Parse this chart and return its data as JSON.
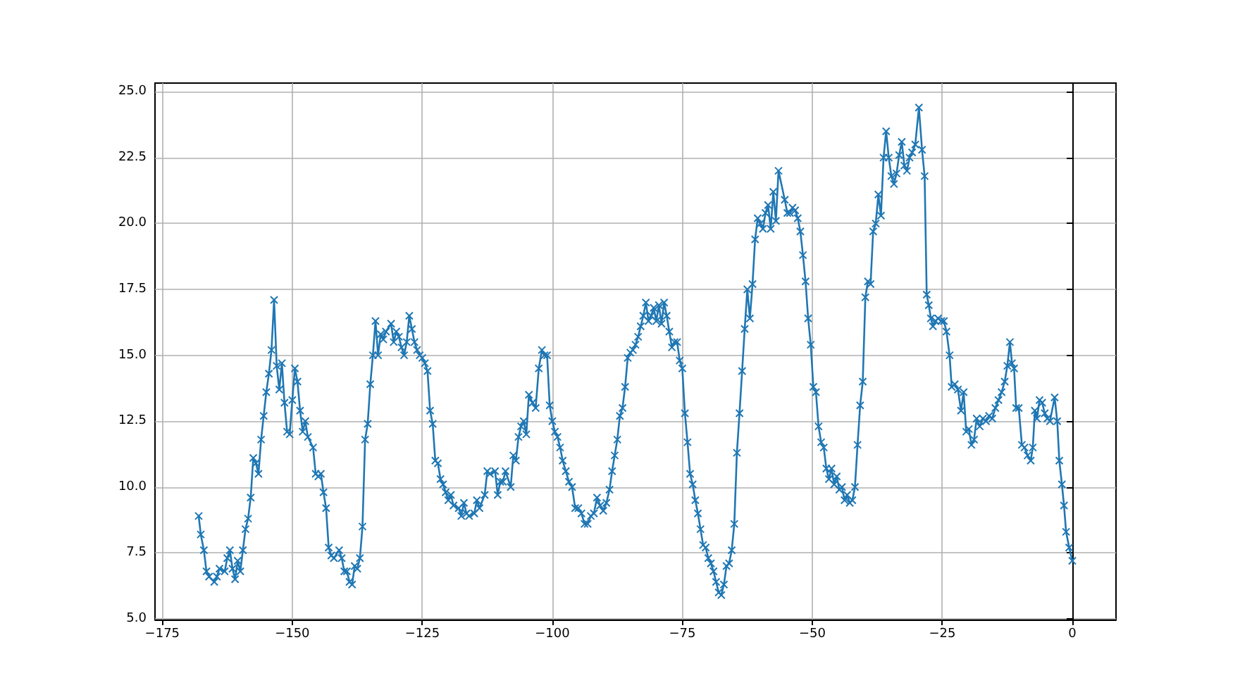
{
  "chart_data": {
    "type": "line",
    "marker": "cross",
    "grid": true,
    "xlim": [
      -176.4,
      8.4
    ],
    "ylim": [
      4.97,
      25.33
    ],
    "xticks": [
      {
        "value": -175,
        "label": "−175"
      },
      {
        "value": -150,
        "label": "−150"
      },
      {
        "value": -125,
        "label": "−125"
      },
      {
        "value": -100,
        "label": "−100"
      },
      {
        "value": -75,
        "label": "−75"
      },
      {
        "value": -50,
        "label": "−50"
      },
      {
        "value": -25,
        "label": "−25"
      },
      0
    ],
    "yticks": [
      {
        "value": 5,
        "label": "5.0"
      },
      7.5,
      {
        "value": 10,
        "label": "10.0"
      },
      12.5,
      {
        "value": 15,
        "label": "15.0"
      },
      17.5,
      {
        "value": 20,
        "label": "20.0"
      },
      22.5,
      {
        "value": 25,
        "label": "25.0"
      }
    ],
    "series": [
      {
        "color": "#1f77b4",
        "x": [
          -168,
          -167.6,
          -167,
          -166.5,
          -166,
          -165,
          -164.5,
          -164,
          -163,
          -162.5,
          -162,
          -161.5,
          -161,
          -160.5,
          -160,
          -159.5,
          -159,
          -158.5,
          -158,
          -157.5,
          -157,
          -156.5,
          -156,
          -155.5,
          -155,
          -154.5,
          -154,
          -153.5,
          -153,
          -152.5,
          -152,
          -151.5,
          -151,
          -150.5,
          -150,
          -149.5,
          -149,
          -148.5,
          -148,
          -147.5,
          -147,
          -146,
          -145.5,
          -145,
          -144.5,
          -144,
          -143.5,
          -143,
          -142.5,
          -142,
          -141,
          -140.5,
          -140,
          -139.5,
          -139,
          -138.5,
          -138,
          -137.5,
          -137,
          -136.5,
          -136,
          -135.5,
          -135,
          -134.5,
          -134,
          -133.5,
          -133,
          -132.5,
          -132,
          -131,
          -130.5,
          -130,
          -129.5,
          -129,
          -128.5,
          -128,
          -127.5,
          -127,
          -126.5,
          -126,
          -125.5,
          -125,
          -124.5,
          -124,
          -123.5,
          -123,
          -122.5,
          -122,
          -121.5,
          -121,
          -120.5,
          -120,
          -119.5,
          -119,
          -118,
          -117.5,
          -117,
          -116.5,
          -116,
          -115,
          -114.5,
          -114,
          -113,
          -112.5,
          -112,
          -111,
          -110.5,
          -110,
          -109.5,
          -109,
          -108,
          -107.5,
          -107,
          -106.5,
          -106,
          -105.5,
          -105,
          -104.5,
          -103.8,
          -103.2,
          -102.6,
          -102,
          -101.5,
          -101,
          -100.5,
          -100,
          -99.5,
          -99,
          -98.5,
          -98,
          -97.4,
          -96.8,
          -96.2,
          -95.6,
          -95,
          -94.4,
          -93.8,
          -93.2,
          -92.6,
          -92,
          -91.4,
          -90.8,
          -90.2,
          -89.6,
          -89,
          -88.5,
          -88,
          -87.5,
          -87,
          -86.5,
          -86,
          -85.5,
          -85,
          -84.5,
          -84,
          -83.5,
          -83,
          -82.5,
          -82,
          -81.5,
          -81,
          -80.5,
          -80,
          -79.5,
          -79,
          -78.5,
          -78,
          -77.5,
          -77,
          -76.5,
          -76,
          -75.5,
          -75,
          -74.5,
          -74,
          -73.5,
          -73,
          -72.5,
          -72,
          -71.5,
          -71,
          -70.5,
          -70,
          -69.5,
          -69,
          -68.5,
          -68,
          -67.5,
          -67,
          -66.5,
          -66,
          -65.5,
          -65,
          -64.5,
          -64,
          -63.5,
          -63,
          -62.5,
          -62,
          -61.5,
          -61,
          -60.5,
          -60,
          -59.5,
          -59,
          -58.5,
          -58,
          -57.5,
          -57,
          -56.5,
          -55.3,
          -54.8,
          -54.3,
          -53.8,
          -53.3,
          -52.8,
          -52.3,
          -51.8,
          -51.3,
          -50.8,
          -50.3,
          -49.8,
          -49.3,
          -48.8,
          -48.3,
          -47.8,
          -47.3,
          -46.8,
          -46.3,
          -45.8,
          -45.3,
          -44.8,
          -44.3,
          -43.8,
          -43.3,
          -42.8,
          -42.3,
          -41.8,
          -41.3,
          -40.8,
          -40.3,
          -39.8,
          -39.3,
          -38.8,
          -38.3,
          -37.8,
          -37.3,
          -36.8,
          -36.3,
          -35.8,
          -35.3,
          -34.8,
          -34.3,
          -33.8,
          -33.3,
          -32.8,
          -32.3,
          -31.8,
          -31.3,
          -30.8,
          -30.2,
          -29.5,
          -28.9,
          -28.4,
          -28,
          -27.6,
          -27.2,
          -26.8,
          -26.3,
          -25.8,
          -25.2,
          -24.7,
          -24.2,
          -23.6,
          -23.2,
          -22.6,
          -22,
          -21.4,
          -20.9,
          -20.4,
          -19.9,
          -19.4,
          -18.9,
          -18.4,
          -17.8,
          -17.2,
          -16.6,
          -16,
          -15.4,
          -14.8,
          -14.2,
          -13.6,
          -13,
          -12.5,
          -12,
          -11.6,
          -11.2,
          -10.8,
          -10.3,
          -9.7,
          -9.2,
          -8.6,
          -8,
          -7.6,
          -7.2,
          -6.8,
          -6.3,
          -5.8,
          -5.3,
          -4.8,
          -4.3,
          -3.4,
          -2.9,
          -2.5,
          -2,
          -1.6,
          -1.2,
          -0.6,
          0
        ],
        "values": [
          8.9,
          8.2,
          7.6,
          6.8,
          6.6,
          6.4,
          6.6,
          6.9,
          6.8,
          7.3,
          7.6,
          6.9,
          6.5,
          7.2,
          6.8,
          7.6,
          8.4,
          8.8,
          9.6,
          11.1,
          10.9,
          10.5,
          11.8,
          12.7,
          13.6,
          14.3,
          15.2,
          17.1,
          14.6,
          13.7,
          14.7,
          13.2,
          12.1,
          12.0,
          13.3,
          14.5,
          14.0,
          12.9,
          12.1,
          12.5,
          11.9,
          11.5,
          10.5,
          10.4,
          10.5,
          9.8,
          9.2,
          7.7,
          7.4,
          7.3,
          7.6,
          7.3,
          6.8,
          6.8,
          6.4,
          6.3,
          7.0,
          6.9,
          7.3,
          8.5,
          11.8,
          12.4,
          13.9,
          15.0,
          16.3,
          15.0,
          15.8,
          15.6,
          15.9,
          16.2,
          15.5,
          15.9,
          15.7,
          15.3,
          15.0,
          15.5,
          16.5,
          16.0,
          15.5,
          15.2,
          15.0,
          14.9,
          14.7,
          14.4,
          12.9,
          12.4,
          11.0,
          10.9,
          10.3,
          10.1,
          9.8,
          9.5,
          9.7,
          9.3,
          9.2,
          8.9,
          9.4,
          9.0,
          8.9,
          9.0,
          9.5,
          9.2,
          9.7,
          10.6,
          10.5,
          10.6,
          9.7,
          10.2,
          10.2,
          10.6,
          10.0,
          11.2,
          11.0,
          11.9,
          12.3,
          12.5,
          12.0,
          13.5,
          13.2,
          13.0,
          14.5,
          15.2,
          15.0,
          15.0,
          13.1,
          12.5,
          12.1,
          11.9,
          11.5,
          11.0,
          10.6,
          10.2,
          10.0,
          9.2,
          9.2,
          9.0,
          8.6,
          8.6,
          8.9,
          9.0,
          9.6,
          9.3,
          9.1,
          9.4,
          9.9,
          10.6,
          11.2,
          11.8,
          12.7,
          13.0,
          13.8,
          14.9,
          15.1,
          15.2,
          15.4,
          15.7,
          16.1,
          16.5,
          17.0,
          16.3,
          16.5,
          16.8,
          16.3,
          16.9,
          16.2,
          17.0,
          16.5,
          15.9,
          15.3,
          15.5,
          15.5,
          14.8,
          14.5,
          12.8,
          11.7,
          10.5,
          10.1,
          9.5,
          9.0,
          8.4,
          7.8,
          7.7,
          7.3,
          7.1,
          6.8,
          6.4,
          6.0,
          5.9,
          6.3,
          7.0,
          7.1,
          7.6,
          8.6,
          11.3,
          12.8,
          14.4,
          16.0,
          17.5,
          16.4,
          17.7,
          19.4,
          20.2,
          20.0,
          19.8,
          20.4,
          20.7,
          19.8,
          21.2,
          20.1,
          22.0,
          20.9,
          20.4,
          20.4,
          20.6,
          20.5,
          20.2,
          19.7,
          18.8,
          17.8,
          16.4,
          15.4,
          13.8,
          13.6,
          12.3,
          11.7,
          11.5,
          10.7,
          10.3,
          10.7,
          10.1,
          10.4,
          9.9,
          10.0,
          9.5,
          9.7,
          9.4,
          9.5,
          10.0,
          11.6,
          13.1,
          14.0,
          17.2,
          17.8,
          17.7,
          19.7,
          20.0,
          21.1,
          20.3,
          22.5,
          23.5,
          22.5,
          21.8,
          21.5,
          21.9,
          22.6,
          23.1,
          22.2,
          22.0,
          22.5,
          22.7,
          23.0,
          24.4,
          22.8,
          21.8,
          17.3,
          16.9,
          16.4,
          16.1,
          16.3,
          16.4,
          16.3,
          16.3,
          15.9,
          15.0,
          13.8,
          13.9,
          13.7,
          12.9,
          13.6,
          12.1,
          12.2,
          11.6,
          11.8,
          12.6,
          12.3,
          12.6,
          12.5,
          12.7,
          12.6,
          13.0,
          13.3,
          13.6,
          14.0,
          14.6,
          15.5,
          14.7,
          14.5,
          13.0,
          13.0,
          11.6,
          11.5,
          11.2,
          11.0,
          11.5,
          12.9,
          12.6,
          13.3,
          13.2,
          12.8,
          12.6,
          12.5,
          13.4,
          12.5,
          11.0,
          10.1,
          9.3,
          8.3,
          7.7,
          7.2
        ]
      }
    ]
  }
}
